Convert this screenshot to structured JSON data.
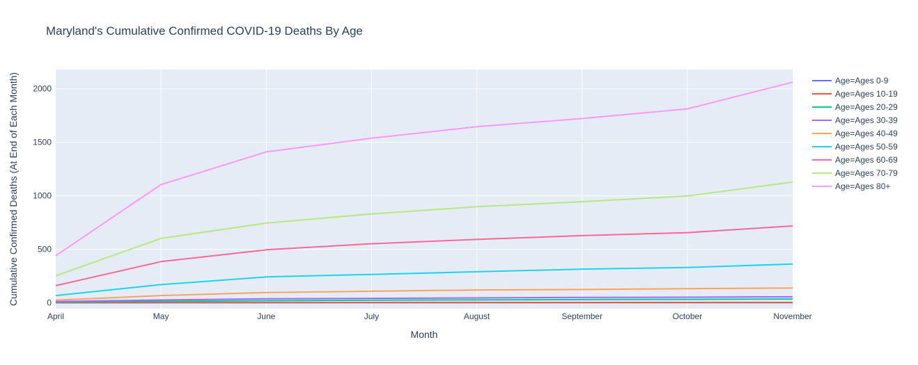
{
  "chart_data": {
    "type": "line",
    "title": "Maryland's Cumulative Confirmed COVID-19 Deaths By Age",
    "xlabel": "Month",
    "ylabel": "Cumulative Confirmed Deaths (At End of Each Month)",
    "categories": [
      "April",
      "May",
      "June",
      "July",
      "August",
      "September",
      "October",
      "November"
    ],
    "y_ticks": [
      0,
      500,
      1000,
      1500,
      2000
    ],
    "y_tick_labels": [
      "0",
      "500",
      "1000",
      "1500",
      "2000"
    ],
    "ylim": [
      -55,
      2180
    ],
    "grid": true,
    "legend_position": "right",
    "series": [
      {
        "name": "Age=Ages 0-9",
        "color": "#636efa",
        "values": [
          1,
          2,
          2,
          2,
          2,
          2,
          2,
          2
        ]
      },
      {
        "name": "Age=Ages 10-19",
        "color": "#ef553b",
        "values": [
          0,
          1,
          1,
          2,
          2,
          2,
          3,
          3
        ]
      },
      {
        "name": "Age=Ages 20-29",
        "color": "#00cc96",
        "values": [
          5,
          14,
          20,
          24,
          27,
          30,
          32,
          35
        ]
      },
      {
        "name": "Age=Ages 30-39",
        "color": "#ab63fa",
        "values": [
          12,
          26,
          37,
          42,
          46,
          50,
          52,
          56
        ]
      },
      {
        "name": "Age=Ages 40-49",
        "color": "#ffa15a",
        "values": [
          24,
          68,
          96,
          108,
          120,
          124,
          132,
          138
        ]
      },
      {
        "name": "Age=Ages 50-59",
        "color": "#19d3f3",
        "values": [
          68,
          170,
          242,
          265,
          290,
          315,
          330,
          362
        ]
      },
      {
        "name": "Age=Ages 60-69",
        "color": "#ff6692",
        "values": [
          160,
          385,
          495,
          552,
          592,
          628,
          656,
          718
        ]
      },
      {
        "name": "Age=Ages 70-79",
        "color": "#b6e880",
        "values": [
          252,
          602,
          745,
          830,
          898,
          945,
          998,
          1128
        ]
      },
      {
        "name": "Age=Ages 80+",
        "color": "#ff97ff",
        "values": [
          440,
          1105,
          1410,
          1538,
          1645,
          1722,
          1812,
          2062
        ]
      }
    ]
  }
}
